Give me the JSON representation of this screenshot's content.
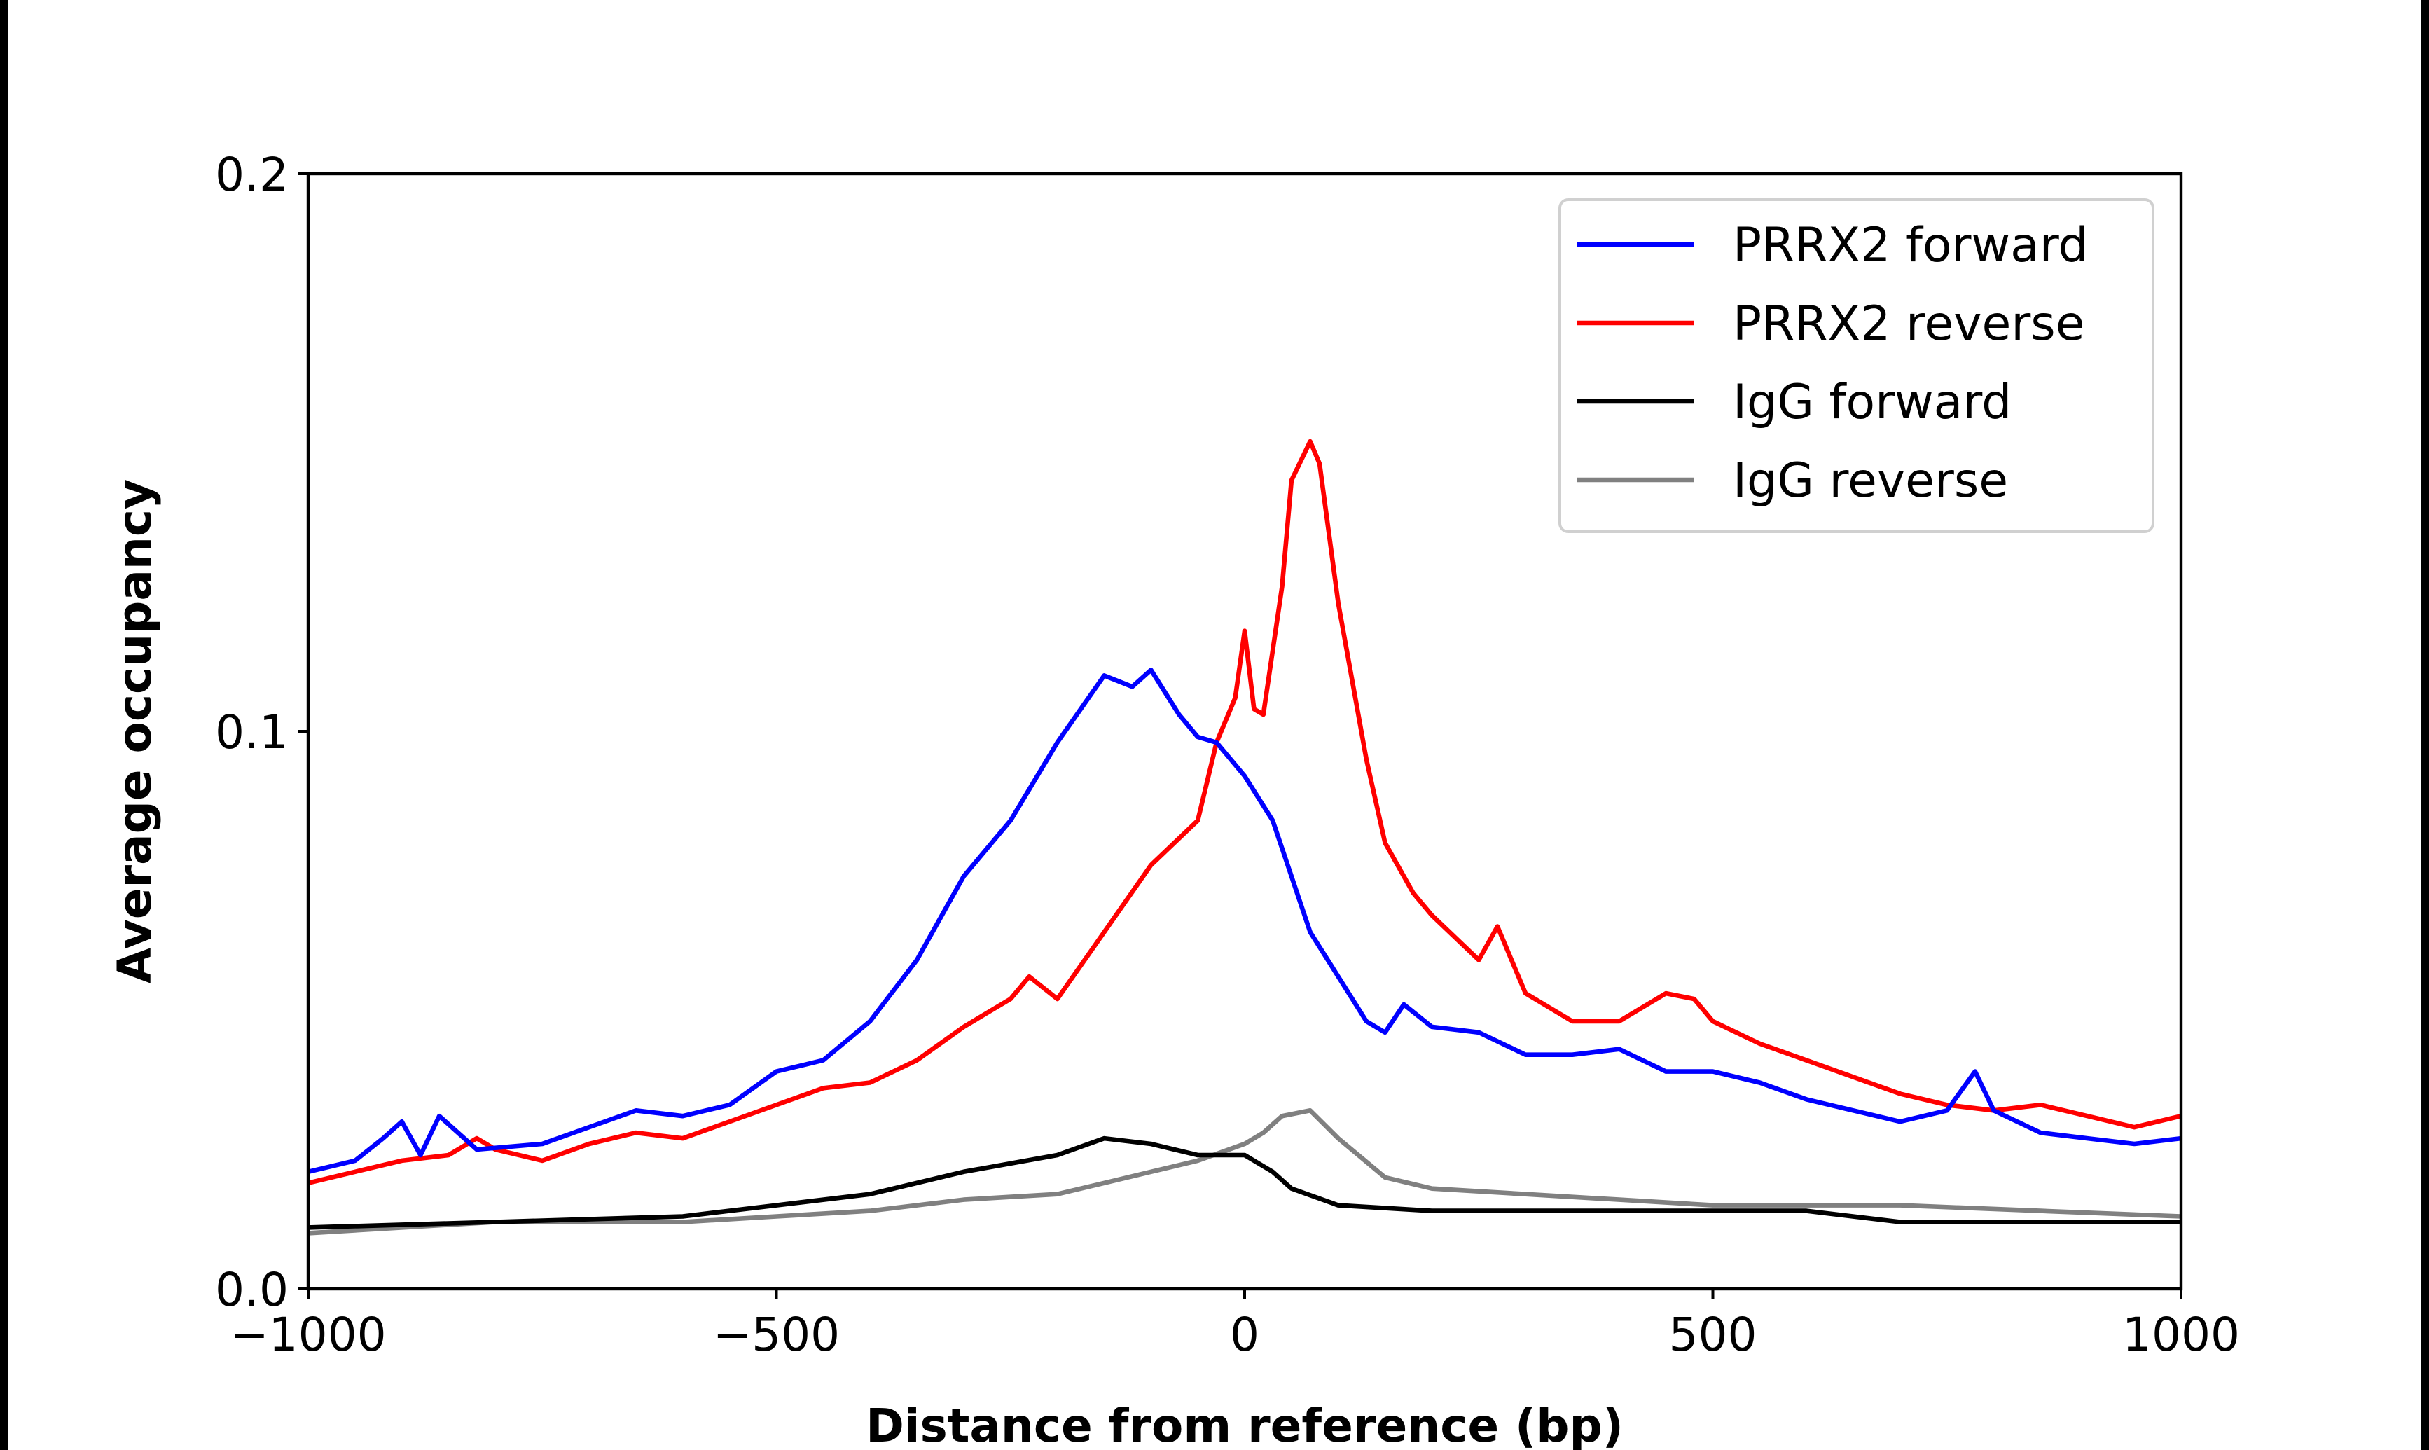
{
  "chart_data": {
    "type": "line",
    "title": "",
    "xlabel": "Distance from reference (bp)",
    "ylabel": "Average occupancy",
    "xlim": [
      -1000,
      1000
    ],
    "ylim": [
      0.0,
      0.2
    ],
    "xticks": [
      -1000,
      -500,
      0,
      500,
      1000
    ],
    "xtick_labels": [
      "−1000",
      "−500",
      "0",
      "500",
      "1000"
    ],
    "yticks": [
      0.0,
      0.1,
      0.2
    ],
    "ytick_labels": [
      "0.0",
      "0.1",
      "0.2"
    ],
    "grid": false,
    "legend_position": "top-right",
    "series": [
      {
        "name": "PRRX2 forward",
        "color": "#0000ff",
        "x": [
          -1000,
          -950,
          -920,
          -900,
          -880,
          -860,
          -820,
          -750,
          -700,
          -650,
          -600,
          -550,
          -500,
          -450,
          -400,
          -350,
          -300,
          -250,
          -200,
          -150,
          -120,
          -100,
          -70,
          -50,
          -30,
          0,
          30,
          50,
          70,
          100,
          130,
          150,
          170,
          200,
          250,
          300,
          350,
          400,
          450,
          500,
          550,
          600,
          650,
          700,
          750,
          780,
          800,
          850,
          900,
          950,
          1000
        ],
        "y": [
          0.021,
          0.023,
          0.027,
          0.03,
          0.024,
          0.031,
          0.025,
          0.026,
          0.029,
          0.032,
          0.031,
          0.033,
          0.039,
          0.041,
          0.048,
          0.059,
          0.074,
          0.084,
          0.098,
          0.11,
          0.108,
          0.111,
          0.103,
          0.099,
          0.098,
          0.092,
          0.084,
          0.074,
          0.064,
          0.056,
          0.048,
          0.046,
          0.051,
          0.047,
          0.046,
          0.042,
          0.042,
          0.043,
          0.039,
          0.039,
          0.037,
          0.034,
          0.032,
          0.03,
          0.032,
          0.039,
          0.032,
          0.028,
          0.027,
          0.026,
          0.027
        ]
      },
      {
        "name": "PRRX2 reverse",
        "color": "#ff0000",
        "x": [
          -1000,
          -950,
          -900,
          -850,
          -820,
          -800,
          -750,
          -700,
          -650,
          -600,
          -550,
          -500,
          -450,
          -400,
          -350,
          -300,
          -250,
          -230,
          -200,
          -150,
          -100,
          -50,
          -30,
          -10,
          0,
          10,
          20,
          40,
          50,
          70,
          80,
          100,
          130,
          150,
          180,
          200,
          250,
          270,
          300,
          350,
          400,
          450,
          480,
          500,
          550,
          600,
          650,
          700,
          750,
          800,
          850,
          900,
          950,
          1000
        ],
        "y": [
          0.019,
          0.021,
          0.023,
          0.024,
          0.027,
          0.025,
          0.023,
          0.026,
          0.028,
          0.027,
          0.03,
          0.033,
          0.036,
          0.037,
          0.041,
          0.047,
          0.052,
          0.056,
          0.052,
          0.064,
          0.076,
          0.084,
          0.098,
          0.106,
          0.118,
          0.104,
          0.103,
          0.126,
          0.145,
          0.152,
          0.148,
          0.123,
          0.095,
          0.08,
          0.071,
          0.067,
          0.059,
          0.065,
          0.053,
          0.048,
          0.048,
          0.053,
          0.052,
          0.048,
          0.044,
          0.041,
          0.038,
          0.035,
          0.033,
          0.032,
          0.033,
          0.031,
          0.029,
          0.031
        ]
      },
      {
        "name": "IgG forward",
        "color": "#000000",
        "x": [
          -1000,
          -800,
          -600,
          -500,
          -400,
          -300,
          -200,
          -150,
          -100,
          -50,
          0,
          30,
          50,
          100,
          200,
          300,
          400,
          500,
          600,
          700,
          800,
          1000
        ],
        "y": [
          0.011,
          0.012,
          0.013,
          0.015,
          0.017,
          0.021,
          0.024,
          0.027,
          0.026,
          0.024,
          0.024,
          0.021,
          0.018,
          0.015,
          0.014,
          0.014,
          0.014,
          0.014,
          0.014,
          0.012,
          0.012,
          0.012
        ]
      },
      {
        "name": "IgG reverse",
        "color": "#808080",
        "x": [
          -1000,
          -800,
          -600,
          -500,
          -400,
          -300,
          -200,
          -150,
          -100,
          -50,
          0,
          20,
          40,
          70,
          100,
          150,
          200,
          300,
          400,
          500,
          700,
          850,
          1000
        ],
        "y": [
          0.01,
          0.012,
          0.012,
          0.013,
          0.014,
          0.016,
          0.017,
          0.019,
          0.021,
          0.023,
          0.026,
          0.028,
          0.031,
          0.032,
          0.027,
          0.02,
          0.018,
          0.017,
          0.016,
          0.015,
          0.015,
          0.014,
          0.013
        ]
      }
    ]
  }
}
